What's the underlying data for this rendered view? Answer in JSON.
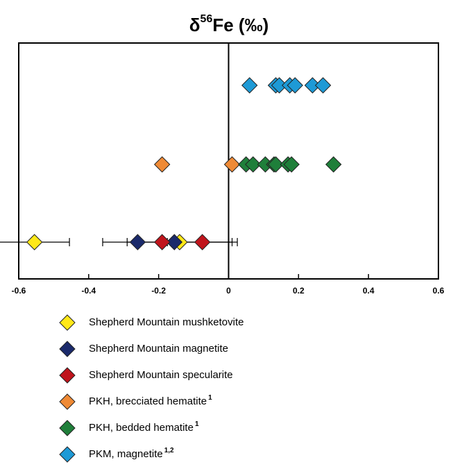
{
  "chart_data": {
    "type": "scatter",
    "title": {
      "symbol": "δ",
      "sup": "56",
      "rest": "Fe (‰)"
    },
    "xlim": [
      -0.6,
      0.6
    ],
    "xticks": [
      -0.6,
      -0.4,
      -0.2,
      0,
      0.2,
      0.4,
      0.6
    ],
    "series": [
      {
        "name": "Shepherd Mountain mushketovite",
        "color": "#ffe818",
        "values": [
          -0.555,
          -0.14
        ],
        "errors": [
          0.1,
          0.15
        ]
      },
      {
        "name": "Shepherd Mountain magnetite",
        "color": "#1b2a6b",
        "values": [
          -0.26,
          -0.155
        ],
        "errors": [
          0.1,
          null
        ]
      },
      {
        "name": "Shepherd Mountain specularite",
        "color": "#c0141c",
        "values": [
          -0.19,
          -0.075
        ],
        "errors": [
          null,
          0.1
        ]
      },
      {
        "name": "PKH, brecciated hematite",
        "note": "1",
        "color": "#ef8a35",
        "values": [
          -0.19,
          0.01
        ]
      },
      {
        "name": "PKH, bedded hematite",
        "note": "1",
        "color": "#1f7f3a",
        "values": [
          0.05,
          0.07,
          0.105,
          0.13,
          0.135,
          0.17,
          0.18,
          0.3
        ]
      },
      {
        "name": "PKM, magnetite",
        "note": "1,2",
        "color": "#1e9ad6",
        "values": [
          0.06,
          0.135,
          0.145,
          0.175,
          0.19,
          0.24,
          0.27
        ]
      }
    ]
  }
}
